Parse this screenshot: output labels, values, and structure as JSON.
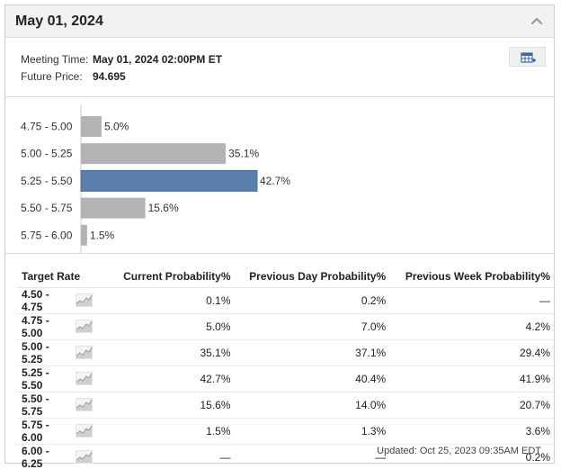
{
  "header": {
    "title": "May 01, 2024"
  },
  "meeting": {
    "time_label": "Meeting Time:",
    "time_value": "May 01, 2024 02:00PM ET",
    "price_label": "Future Price:",
    "price_value": "94.695"
  },
  "colors": {
    "bar_default": "#b3b3b3",
    "bar_highlight": "#5b7fad",
    "accent": "#3b6aa0"
  },
  "icons": {
    "collapse": "chevron-up-icon",
    "export": "table-export-icon",
    "sparkline": "sparkline-chart-icon"
  },
  "chart_data": {
    "type": "bar",
    "orientation": "horizontal",
    "categories": [
      "4.75 - 5.00",
      "5.00 - 5.25",
      "5.25 - 5.50",
      "5.50 - 5.75",
      "5.75 - 6.00"
    ],
    "values": [
      5.0,
      35.1,
      42.7,
      15.6,
      1.5
    ],
    "value_labels": [
      "5.0%",
      "35.1%",
      "42.7%",
      "15.6%",
      "1.5%"
    ],
    "highlight_index": 2,
    "xlim": [
      0,
      100
    ],
    "grid": false,
    "title": "",
    "xlabel": "",
    "ylabel": ""
  },
  "table": {
    "headers": [
      "Target Rate",
      "Current Probability%",
      "Previous Day Probability%",
      "Previous Week Probability%"
    ],
    "rows": [
      {
        "rate": "4.50 - 4.75",
        "current": "0.1%",
        "prev_day": "0.2%",
        "prev_week": "—"
      },
      {
        "rate": "4.75 - 5.00",
        "current": "5.0%",
        "prev_day": "7.0%",
        "prev_week": "4.2%"
      },
      {
        "rate": "5.00 - 5.25",
        "current": "35.1%",
        "prev_day": "37.1%",
        "prev_week": "29.4%"
      },
      {
        "rate": "5.25 - 5.50",
        "current": "42.7%",
        "prev_day": "40.4%",
        "prev_week": "41.9%"
      },
      {
        "rate": "5.50 - 5.75",
        "current": "15.6%",
        "prev_day": "14.0%",
        "prev_week": "20.7%"
      },
      {
        "rate": "5.75 - 6.00",
        "current": "1.5%",
        "prev_day": "1.3%",
        "prev_week": "3.6%"
      },
      {
        "rate": "6.00 - 6.25",
        "current": "—",
        "prev_day": "—",
        "prev_week": "0.2%"
      }
    ]
  },
  "footer": {
    "updated": "Updated: Oct 25, 2023 09:35AM EDT"
  }
}
